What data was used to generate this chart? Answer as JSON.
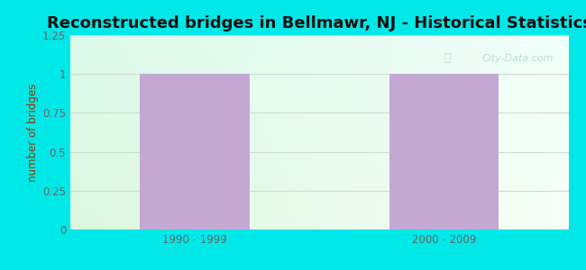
{
  "title": "Reconstructed bridges in Bellmawr, NJ - Historical Statistics",
  "categories": [
    "1990 - 1999",
    "2000 - 2009"
  ],
  "values": [
    1,
    1
  ],
  "bar_color": "#c4a8d4",
  "ylabel": "number of bridges",
  "ylim": [
    0,
    1.25
  ],
  "yticks": [
    0,
    0.25,
    0.5,
    0.75,
    1,
    1.25
  ],
  "ytick_labels": [
    "0",
    "0.25",
    "0.5",
    "0.75",
    "1",
    "1.25"
  ],
  "background_outer": "#00e8e8",
  "title_fontsize": 13,
  "ylabel_color": "#8b3a00",
  "tick_label_color": "#666666",
  "watermark": "City-Data.com",
  "grid_color": "#ddeedd",
  "bar_positions": [
    0.25,
    0.75
  ],
  "bar_width": 0.22,
  "xlim": [
    0,
    1
  ]
}
